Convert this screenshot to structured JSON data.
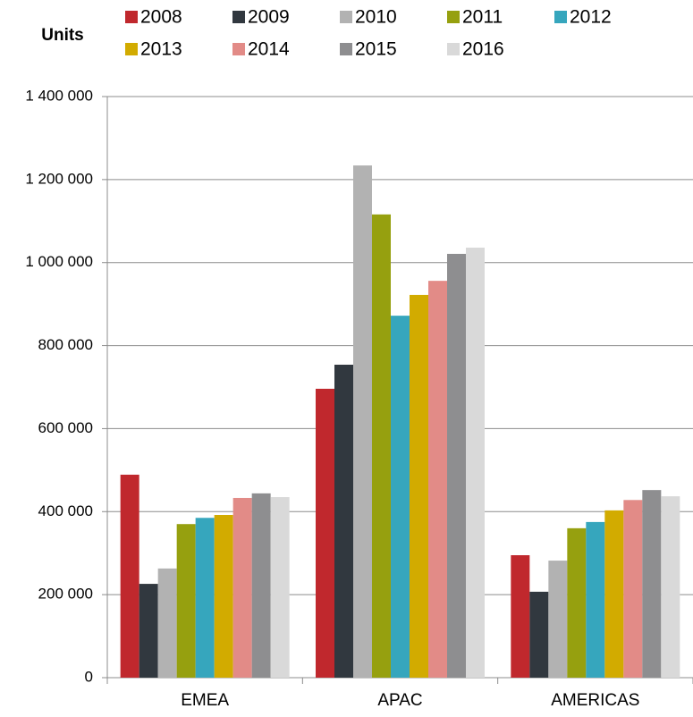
{
  "chart_data": {
    "type": "bar",
    "title": "Units",
    "categories": [
      "EMEA",
      "APAC",
      "AMERICAS"
    ],
    "series": [
      {
        "name": "2008",
        "color": "#c0282d",
        "values": [
          489000,
          696000,
          295000
        ]
      },
      {
        "name": "2009",
        "color": "#31383f",
        "values": [
          226000,
          754000,
          207000
        ]
      },
      {
        "name": "2010",
        "color": "#b2b2b2",
        "values": [
          263000,
          1234000,
          282000
        ]
      },
      {
        "name": "2011",
        "color": "#96a00f",
        "values": [
          370000,
          1116000,
          360000
        ]
      },
      {
        "name": "2012",
        "color": "#36a6bd",
        "values": [
          385000,
          872000,
          375000
        ]
      },
      {
        "name": "2013",
        "color": "#d2ab00",
        "values": [
          392000,
          922000,
          403000
        ]
      },
      {
        "name": "2014",
        "color": "#e28b87",
        "values": [
          433000,
          956000,
          428000
        ]
      },
      {
        "name": "2015",
        "color": "#8e8e90",
        "values": [
          444000,
          1021000,
          452000
        ]
      },
      {
        "name": "2016",
        "color": "#d9d9d9",
        "values": [
          435000,
          1036000,
          437000
        ]
      }
    ],
    "ylim": [
      0,
      1400000
    ],
    "yticks": [
      0,
      {
        "value": 200000,
        "label": "200 000"
      },
      {
        "value": 400000,
        "label": "400 000"
      },
      {
        "value": 600000,
        "label": "600 000"
      },
      {
        "value": 800000,
        "label": "800 000"
      },
      {
        "value": 1000000,
        "label": "1 000 000"
      },
      {
        "value": 1200000,
        "label": "1 200 000"
      },
      {
        "value": 1400000,
        "label": "1 400 000"
      }
    ],
    "grid": true
  }
}
